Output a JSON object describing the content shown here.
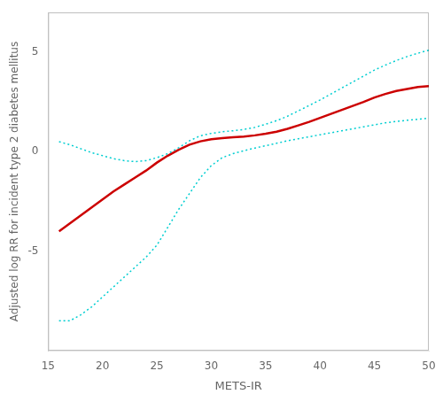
{
  "chart_data": {
    "type": "line",
    "xlabel": "METS-IR",
    "ylabel": "Adjusted log RR for incident type 2 diabetes mellitus",
    "x": [
      16,
      17,
      18,
      19,
      20,
      21,
      22,
      23,
      24,
      25,
      26,
      27,
      28,
      29,
      30,
      31,
      32,
      33,
      34,
      35,
      36,
      37,
      38,
      39,
      40,
      41,
      42,
      43,
      44,
      45,
      46,
      47,
      48,
      49,
      50
    ],
    "series": [
      {
        "color": "#00ced1",
        "line_style": "dotted",
        "values": [
          0.5,
          0.35,
          0.15,
          -0.05,
          -0.2,
          -0.35,
          -0.45,
          -0.5,
          -0.45,
          -0.3,
          -0.1,
          0.2,
          0.55,
          0.8,
          0.92,
          1.0,
          1.05,
          1.12,
          1.22,
          1.38,
          1.56,
          1.78,
          2.05,
          2.32,
          2.6,
          2.9,
          3.2,
          3.5,
          3.8,
          4.1,
          4.35,
          4.58,
          4.78,
          4.95,
          5.1
        ]
      },
      {
        "color": "#00ced1",
        "line_style": "dotted",
        "values": [
          -8.5,
          -8.5,
          -8.2,
          -7.8,
          -7.3,
          -6.8,
          -6.3,
          -5.8,
          -5.3,
          -4.7,
          -3.8,
          -2.9,
          -2.1,
          -1.3,
          -0.7,
          -0.3,
          -0.1,
          0.05,
          0.18,
          0.3,
          0.42,
          0.55,
          0.65,
          0.75,
          0.85,
          0.95,
          1.05,
          1.15,
          1.25,
          1.35,
          1.45,
          1.52,
          1.58,
          1.63,
          1.68
        ]
      },
      {
        "color": "#cc0000",
        "line_style": "solid",
        "values": [
          -4.0,
          -3.6,
          -3.2,
          -2.8,
          -2.4,
          -2.0,
          -1.65,
          -1.3,
          -0.95,
          -0.55,
          -0.2,
          0.1,
          0.35,
          0.52,
          0.62,
          0.68,
          0.72,
          0.76,
          0.82,
          0.9,
          1.0,
          1.15,
          1.32,
          1.5,
          1.7,
          1.9,
          2.1,
          2.3,
          2.5,
          2.72,
          2.9,
          3.05,
          3.15,
          3.25,
          3.3
        ]
      }
    ],
    "xlim": [
      15,
      50
    ],
    "ylim": [
      -10,
      7
    ],
    "xticks": [
      15,
      20,
      25,
      30,
      35,
      40,
      45,
      50
    ],
    "yticks": [
      -5,
      0,
      5
    ],
    "grid": false
  }
}
